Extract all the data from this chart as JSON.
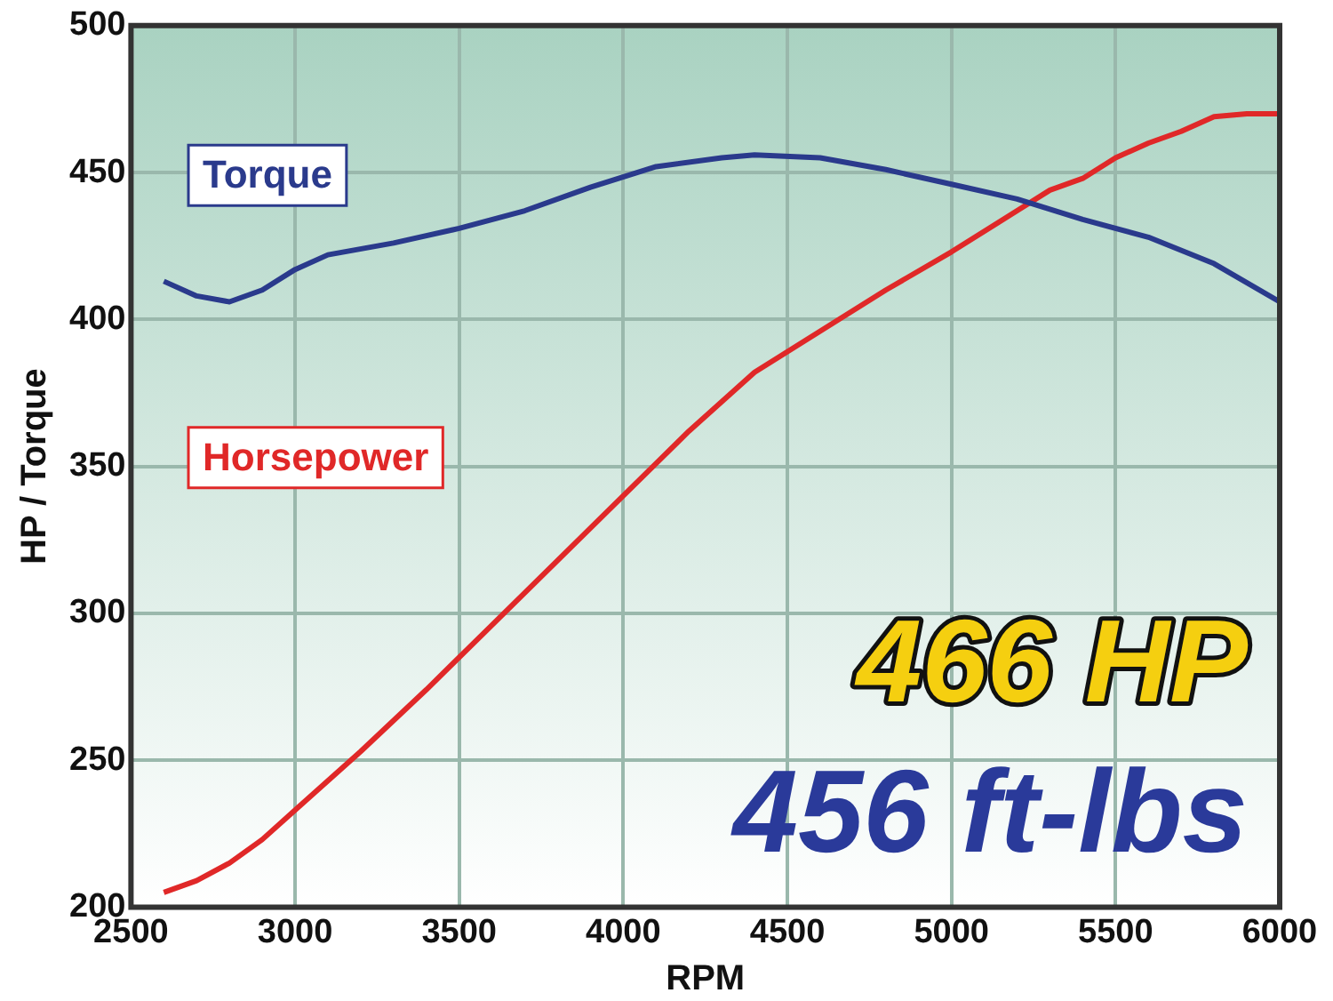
{
  "chart_data": {
    "type": "line",
    "xlabel": "RPM",
    "ylabel": "HP / Torque",
    "xlim": [
      2500,
      6000
    ],
    "xticks": [
      2500,
      3000,
      3500,
      4000,
      4500,
      5000,
      5500,
      6000
    ],
    "ylim": [
      200,
      500
    ],
    "yticks": [
      200,
      250,
      300,
      350,
      400,
      450,
      500
    ],
    "grid": true,
    "legend": false,
    "marker": "none",
    "line_style": "solid",
    "series": [
      {
        "name": "Torque",
        "color": "#2a3a8c",
        "x": [
          2600,
          2700,
          2800,
          2900,
          3000,
          3100,
          3300,
          3500,
          3700,
          3900,
          4100,
          4300,
          4400,
          4600,
          4800,
          5000,
          5200,
          5400,
          5600,
          5800,
          6000
        ],
        "values": [
          413,
          408,
          406,
          410,
          417,
          422,
          426,
          431,
          437,
          445,
          452,
          455,
          456,
          455,
          451,
          446,
          441,
          434,
          428,
          419,
          406
        ]
      },
      {
        "name": "Horsepower",
        "color": "#e02828",
        "x": [
          2600,
          2700,
          2800,
          2900,
          3000,
          3200,
          3400,
          3600,
          3800,
          4000,
          4200,
          4400,
          4600,
          4800,
          5000,
          5200,
          5300,
          5400,
          5500,
          5600,
          5700,
          5800,
          5900,
          6000
        ],
        "values": [
          205,
          209,
          215,
          223,
          233,
          253,
          274,
          296,
          318,
          340,
          362,
          382,
          396,
          410,
          423,
          437,
          444,
          448,
          455,
          460,
          464,
          469,
          470,
          470
        ]
      }
    ],
    "annotations": [
      "466 HP",
      "456 ft-lbs"
    ]
  }
}
